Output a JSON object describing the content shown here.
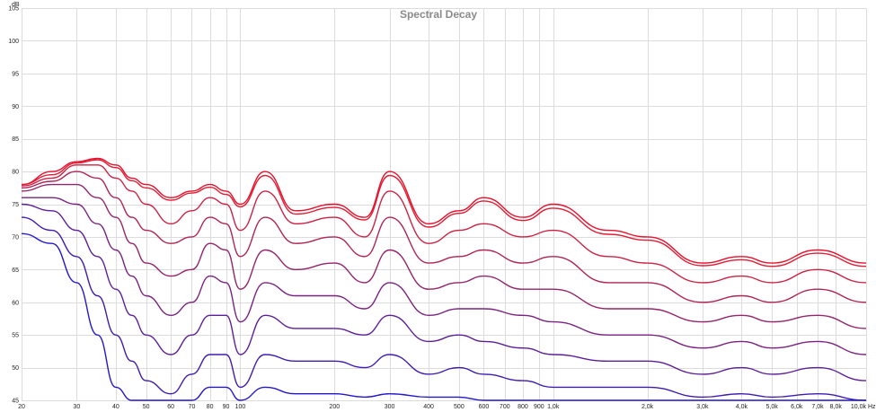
{
  "chart_data": {
    "type": "line",
    "title": "Spectral Decay",
    "x_unit": "Hz",
    "y_unit": "dB",
    "x_scale": "log",
    "xlim": [
      20,
      10000
    ],
    "ylim": [
      45,
      105
    ],
    "grid": true,
    "legend": "none",
    "x_ticks": [
      {
        "value": 20,
        "label": "20"
      },
      {
        "value": 30,
        "label": "30"
      },
      {
        "value": 40,
        "label": "40"
      },
      {
        "value": 50,
        "label": "50"
      },
      {
        "value": 60,
        "label": "60"
      },
      {
        "value": 70,
        "label": "70"
      },
      {
        "value": 80,
        "label": "80"
      },
      {
        "value": 90,
        "label": "90"
      },
      {
        "value": 100,
        "label": "100"
      },
      {
        "value": 200,
        "label": "200"
      },
      {
        "value": 300,
        "label": "300"
      },
      {
        "value": 400,
        "label": "400"
      },
      {
        "value": 500,
        "label": "500"
      },
      {
        "value": 600,
        "label": "600"
      },
      {
        "value": 700,
        "label": "700"
      },
      {
        "value": 800,
        "label": "800"
      },
      {
        "value": 900,
        "label": "900"
      },
      {
        "value": 1000,
        "label": "1,0k"
      },
      {
        "value": 2000,
        "label": "2,0k"
      },
      {
        "value": 3000,
        "label": "3,0k"
      },
      {
        "value": 4000,
        "label": "4,0k"
      },
      {
        "value": 5000,
        "label": "5,0k"
      },
      {
        "value": 6000,
        "label": "6,0k"
      },
      {
        "value": 7000,
        "label": "7,0k"
      },
      {
        "value": 8000,
        "label": "8,0k"
      },
      {
        "value": 10000,
        "label": "10,0k"
      }
    ],
    "y_ticks": [
      105,
      100,
      95,
      90,
      85,
      80,
      75,
      70,
      65,
      60,
      55,
      50,
      45
    ],
    "x": [
      20,
      25,
      30,
      35,
      40,
      45,
      50,
      60,
      70,
      80,
      90,
      100,
      120,
      150,
      200,
      250,
      300,
      400,
      500,
      600,
      800,
      1000,
      1500,
      2000,
      3000,
      4000,
      5000,
      7000,
      10000
    ],
    "series": [
      {
        "color": "#e8112d",
        "values": [
          78,
          80,
          81.5,
          82,
          81,
          79,
          78,
          76,
          77,
          78,
          77,
          75,
          80,
          74,
          75,
          73,
          80,
          72,
          74,
          76,
          73,
          75,
          71,
          70,
          66,
          67,
          66,
          68,
          66
        ]
      },
      {
        "color": "#e21d34",
        "values": [
          78,
          79.5,
          81.3,
          81.8,
          80.6,
          78.6,
          77.5,
          75.6,
          76.7,
          77.6,
          76.5,
          74.6,
          79.4,
          73.5,
          74.5,
          72.6,
          79.4,
          71.5,
          73.6,
          75.5,
          72.5,
          74.4,
          70.4,
          69.5,
          65.6,
          66.5,
          65.5,
          67.5,
          65.5
        ]
      },
      {
        "color": "#cc2345",
        "values": [
          77.8,
          79,
          81,
          81,
          79,
          77,
          75,
          72,
          74,
          76,
          75,
          71,
          77,
          72,
          73,
          70,
          77,
          69,
          71,
          72,
          70,
          71,
          67,
          66,
          63,
          64,
          63,
          65,
          63
        ]
      },
      {
        "color": "#b02455",
        "values": [
          77.5,
          78.5,
          80,
          79,
          76,
          73,
          71,
          69,
          70,
          73,
          72,
          67,
          73,
          69,
          70,
          67,
          73,
          66,
          67,
          68,
          66,
          67,
          63,
          63,
          60,
          61,
          60,
          62,
          60
        ]
      },
      {
        "color": "#95246a",
        "values": [
          77,
          78,
          78,
          76,
          73,
          69,
          66,
          64,
          65,
          69,
          68,
          62,
          68,
          65,
          66,
          63,
          68,
          62,
          63,
          64,
          62,
          62,
          59,
          59,
          57,
          58,
          57,
          58,
          56
        ]
      },
      {
        "color": "#7a2380",
        "values": [
          76,
          76,
          75,
          72,
          68,
          64,
          61,
          58,
          60,
          64,
          63,
          57,
          63,
          61,
          61,
          59,
          63,
          58,
          59,
          59,
          58,
          57,
          55,
          55,
          53,
          54,
          53,
          54,
          52
        ]
      },
      {
        "color": "#5d1f98",
        "values": [
          75,
          74,
          71,
          67,
          62,
          58,
          55,
          52,
          55,
          58,
          58,
          52,
          58,
          56,
          56,
          55,
          58,
          54,
          55,
          54,
          53,
          52,
          51,
          51,
          49,
          50,
          49,
          50,
          48
        ]
      },
      {
        "color": "#3f1cb1",
        "values": [
          73,
          71,
          67,
          61,
          55,
          51,
          48,
          46,
          49,
          52,
          52,
          47,
          52,
          51,
          51,
          50,
          52,
          49,
          50,
          49,
          48,
          47,
          47,
          47,
          45.5,
          46,
          45.5,
          46,
          45
        ]
      },
      {
        "color": "#2318cc",
        "values": [
          70.5,
          69,
          63,
          55,
          47,
          45,
          45,
          45,
          45,
          47,
          47,
          45,
          47,
          46,
          46,
          45.5,
          46,
          45.5,
          45.5,
          45,
          45,
          45,
          45,
          45,
          45,
          45,
          45,
          45,
          45
        ]
      }
    ]
  }
}
